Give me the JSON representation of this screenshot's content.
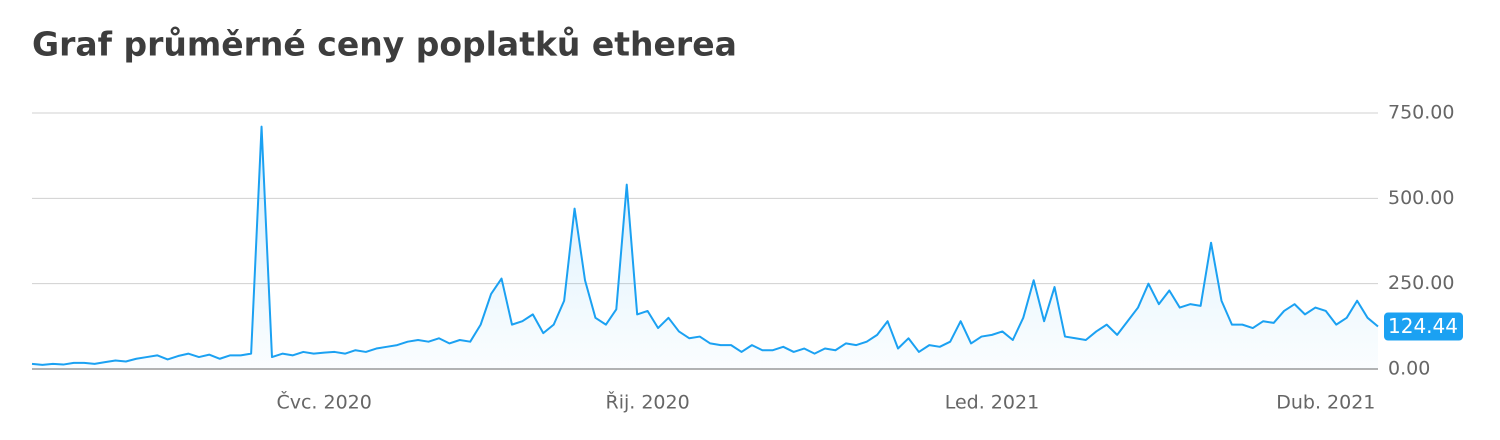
{
  "chart_data": {
    "type": "line",
    "title": "Graf průměrné ceny poplatků etherea",
    "categories": [
      null,
      null,
      null,
      null,
      null,
      null,
      null,
      null,
      null,
      null,
      null,
      null,
      null,
      null,
      null,
      null,
      null,
      null,
      null,
      null,
      null,
      null,
      null,
      null,
      null,
      null,
      null,
      null,
      "Čvc. 2020",
      null,
      null,
      null,
      null,
      null,
      null,
      null,
      null,
      null,
      null,
      null,
      null,
      null,
      null,
      null,
      null,
      null,
      null,
      null,
      null,
      null,
      null,
      null,
      null,
      null,
      null,
      null,
      null,
      null,
      null,
      "Řij. 2020",
      null,
      null,
      null,
      null,
      null,
      null,
      null,
      null,
      null,
      null,
      null,
      null,
      null,
      null,
      null,
      null,
      null,
      null,
      null,
      null,
      null,
      null,
      null,
      null,
      null,
      null,
      null,
      null,
      null,
      null,
      null,
      null,
      "Led. 2021",
      null,
      null,
      null,
      null,
      null,
      null,
      null,
      null,
      null,
      null,
      null,
      null,
      null,
      null,
      null,
      null,
      null,
      null,
      null,
      null,
      null,
      null,
      null,
      null,
      null,
      null,
      null,
      null,
      null,
      null,
      null,
      "Dub. 2021",
      null,
      null,
      null,
      null,
      null
    ],
    "values": [
      15,
      12,
      15,
      13,
      18,
      18,
      15,
      20,
      25,
      22,
      30,
      35,
      40,
      28,
      38,
      45,
      35,
      42,
      30,
      40,
      40,
      45,
      710,
      35,
      45,
      40,
      50,
      45,
      48,
      50,
      45,
      55,
      50,
      60,
      65,
      70,
      80,
      85,
      80,
      90,
      75,
      85,
      80,
      130,
      220,
      265,
      130,
      140,
      160,
      105,
      130,
      200,
      470,
      260,
      150,
      130,
      175,
      540,
      160,
      170,
      120,
      150,
      110,
      90,
      95,
      75,
      70,
      70,
      50,
      70,
      55,
      55,
      65,
      50,
      60,
      45,
      60,
      55,
      75,
      70,
      80,
      100,
      140,
      60,
      90,
      50,
      70,
      65,
      80,
      140,
      75,
      95,
      100,
      110,
      85,
      150,
      260,
      140,
      240,
      95,
      90,
      85,
      110,
      130,
      100,
      140,
      180,
      250,
      190,
      230,
      180,
      190,
      185,
      370,
      200,
      130,
      130,
      120,
      140,
      135,
      170,
      190,
      160,
      180,
      170,
      130,
      150,
      200,
      150,
      124.44
    ],
    "color": "#1ba1f2",
    "ylim": [
      0,
      750
    ],
    "yticks": [
      {
        "value": 0,
        "label": "0.00"
      },
      {
        "value": 250,
        "label": "250.00"
      },
      {
        "value": 500,
        "label": "500.00"
      },
      {
        "value": 750,
        "label": "750.00"
      }
    ],
    "grid": true
  }
}
